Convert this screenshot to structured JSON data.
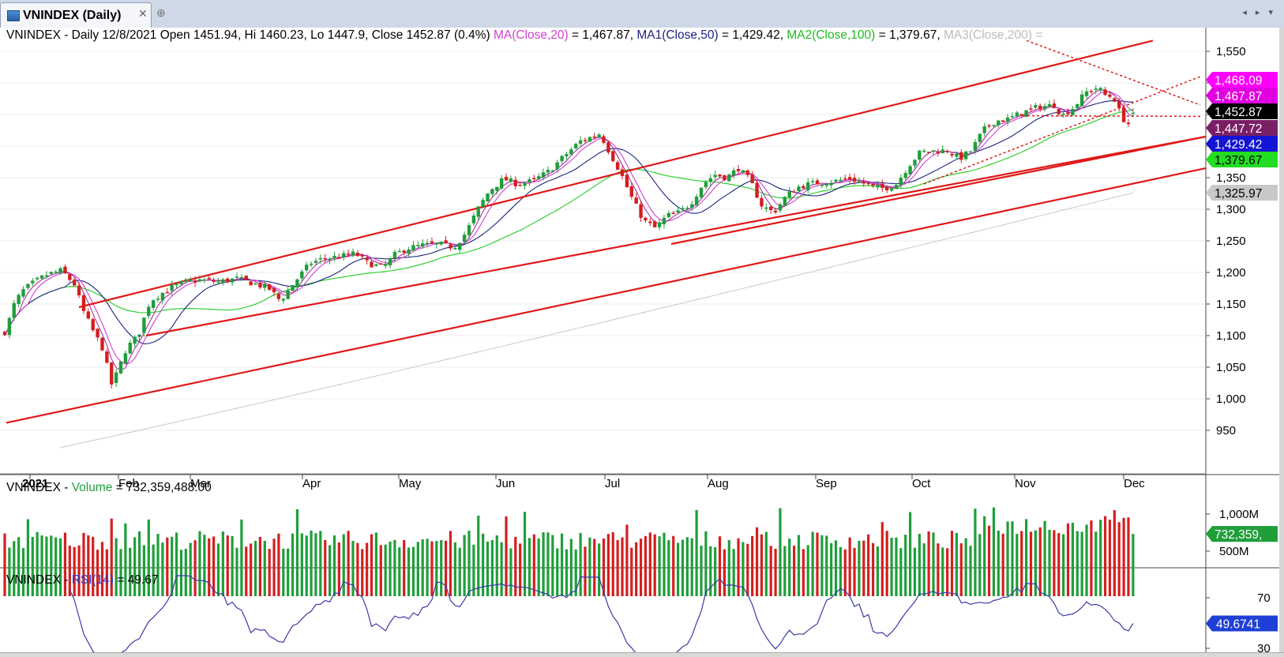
{
  "window": {
    "tab_title": "VNINDEX (Daily)",
    "close_glyph": "✕",
    "new_tab_glyph": "⊕",
    "nav_glyph": "◂ ▸ ▾"
  },
  "price_panel": {
    "header": {
      "prefix": "VNINDEX - Daily 12/8/2021 Open 1451.94, Hi 1460.23, Lo 1447.9, Close 1452.87 (0.4%) ",
      "ma20_label": "MA(Close,20)",
      "ma20_value": " = 1,467.87, ",
      "ma50_label": "MA1(Close,50)",
      "ma50_value": " = 1,429.42, ",
      "ma100_label": "MA2(Close,100)",
      "ma100_value": " = 1,379.67, ",
      "ma200_label": "MA3(Close,200) ="
    },
    "price_tags": [
      {
        "text": "1,468.09",
        "value": 1468.09,
        "bg": "#ff00ff",
        "fg": "#ffffff"
      },
      {
        "text": "1,467.87",
        "value": 1467.87,
        "bg": "#e000e0",
        "fg": "#ffffff"
      },
      {
        "text": "1,452.87",
        "value": 1452.87,
        "bg": "#000000",
        "fg": "#ffffff"
      },
      {
        "text": "1,447.72",
        "value": 1447.72,
        "bg": "#7a1f66",
        "fg": "#ffffff"
      },
      {
        "text": "1,429.42",
        "value": 1429.42,
        "bg": "#1414d4",
        "fg": "#ffffff"
      },
      {
        "text": "1,379.67",
        "value": 1379.67,
        "bg": "#22dd22",
        "fg": "#000000"
      },
      {
        "text": "1,325.97",
        "value": 1325.97,
        "bg": "#c8c8c8",
        "fg": "#000000"
      }
    ]
  },
  "volume_panel": {
    "header_prefix": "VNINDEX - ",
    "header_label": "Volume",
    "header_value": " = 732,359,488.00",
    "y_ticks": [
      "1,000M",
      "500M"
    ],
    "tag": "732,359,",
    "tag_color": "#1f9e3a"
  },
  "rsi_panel": {
    "header_prefix": "VNINDEX - ",
    "header_label": "RSI(14)",
    "header_value": " = 49.67",
    "y_ticks": [
      "70",
      "30"
    ],
    "tag": "49.6741",
    "tag_color": "#1f3fd6"
  },
  "colors": {
    "up": "#1f9e3a",
    "down": "#d41f1f",
    "ma20": "#d040d0",
    "ma50": "#1a237e",
    "ma100": "#22cc22",
    "ma200": "#c8c8c8",
    "trend": "#e01818",
    "rsi_line": "#3a3aa8"
  },
  "chart_data": {
    "type": "candlestick",
    "title": "VNINDEX (Daily)",
    "x_ticks": [
      "2021",
      "Feb",
      "Mar",
      "Apr",
      "May",
      "Jun",
      "Jul",
      "Aug",
      "Sep",
      "Oct",
      "Nov",
      "Dec"
    ],
    "y_ticks": [
      950,
      1000,
      1050,
      1100,
      1150,
      1200,
      1250,
      1300,
      1350,
      1400,
      1450,
      1500,
      1550
    ],
    "y_tick_labels": [
      "950",
      "1,000",
      "1,050",
      "1,100",
      "1,150",
      "1,200",
      "1,250",
      "1,300",
      "1,350",
      "",
      "",
      "",
      "1,550"
    ],
    "ylim": [
      905,
      1585
    ],
    "approx_close_by_month_start": {
      "Jan": 1100,
      "Feb": 1050,
      "Mar": 1175,
      "Apr": 1190,
      "May": 1240,
      "Jun": 1330,
      "Jul": 1420,
      "Aug": 1340,
      "Sep": 1340,
      "Oct": 1345,
      "Nov": 1445,
      "Dec": 1452.87
    },
    "last_bar": {
      "date": "12/8/2021",
      "open": 1451.94,
      "high": 1460.23,
      "low": 1447.9,
      "close": 1452.87
    },
    "moving_averages": [
      {
        "name": "MA(Close,20)",
        "value": 1467.87
      },
      {
        "name": "MA1(Close,50)",
        "value": 1429.42
      },
      {
        "name": "MA2(Close,100)",
        "value": 1379.67
      },
      {
        "name": "MA3(Close,200)",
        "value": 1325.97
      }
    ],
    "volume_last": 732359488,
    "volume_ticks": [
      1000,
      500
    ],
    "rsi_last": 49.67,
    "rsi_ticks": [
      70,
      30
    ]
  }
}
